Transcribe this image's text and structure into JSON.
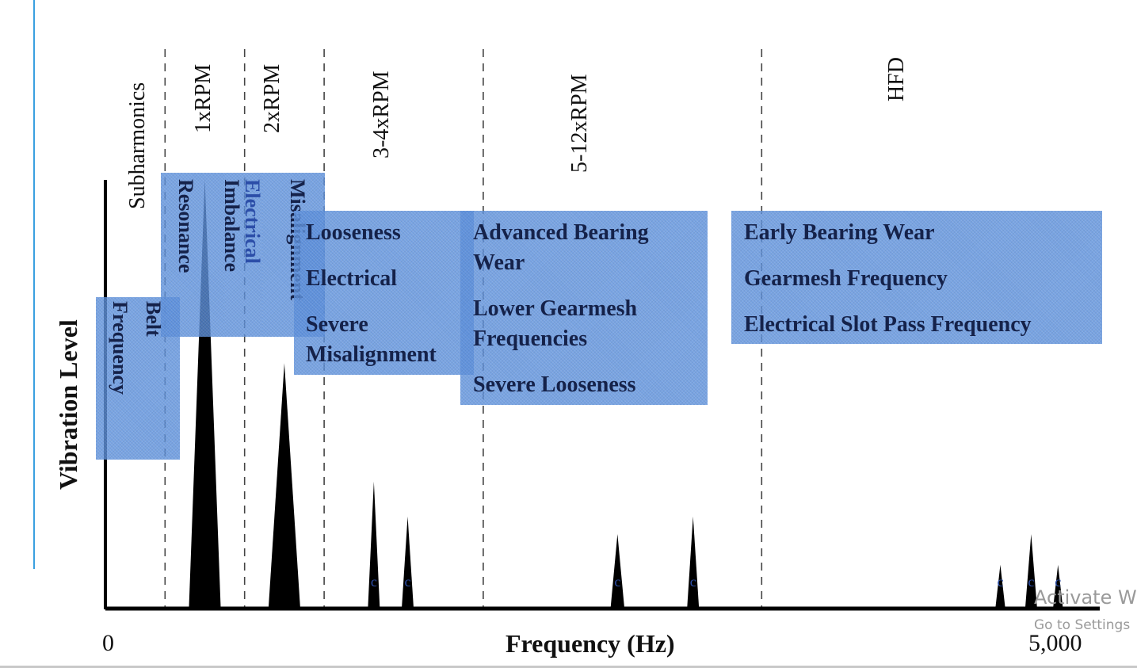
{
  "chart_data": {
    "type": "area",
    "xlabel": "Frequency (Hz)",
    "ylabel": "Vibration Level",
    "xlim": [
      0,
      5000
    ],
    "x_ticks": [
      "0",
      "5,000"
    ],
    "zones": [
      "Subharmonics",
      "1xRPM",
      "2xRPM",
      "3-4xRPM",
      "5-12xRPM",
      "HFD"
    ],
    "zone_edges": [
      300,
      700,
      1100,
      1900,
      3300
    ],
    "peaks": [
      {
        "x": 500,
        "height": 0.98,
        "half_width": 80,
        "label": ""
      },
      {
        "x": 900,
        "height": 0.56,
        "half_width": 80,
        "label": ""
      },
      {
        "x": 1350,
        "height": 0.29,
        "half_width": 30,
        "label": "c"
      },
      {
        "x": 1520,
        "height": 0.21,
        "half_width": 30,
        "label": "c"
      },
      {
        "x": 2575,
        "height": 0.17,
        "half_width": 35,
        "label": "c"
      },
      {
        "x": 2955,
        "height": 0.21,
        "half_width": 30,
        "label": "c"
      },
      {
        "x": 4500,
        "height": 0.1,
        "half_width": 25,
        "label": "c"
      },
      {
        "x": 4655,
        "height": 0.17,
        "half_width": 30,
        "label": "c"
      },
      {
        "x": 4790,
        "height": 0.1,
        "half_width": 25,
        "label": "c"
      }
    ],
    "annotations": {
      "belt_frequency": [
        "Belt",
        "Frequency"
      ],
      "resonance": "Resonance",
      "electrical_imbalance": [
        "Electrical",
        "Imbalance"
      ],
      "misalignment": "Misalignment",
      "group_3_4x": [
        "Looseness",
        "Electrical",
        "Severe",
        "Misalignment"
      ],
      "group_5_12x": [
        "Advanced Bearing",
        "Wear",
        "Lower Gearmesh",
        "Frequencies",
        "Severe Looseness"
      ],
      "group_hfd": [
        "Early Bearing Wear",
        "Gearmesh Frequency",
        "Electrical Slot Pass Frequency"
      ]
    },
    "colors": {
      "annotation_box": "#5b8fdc",
      "annotation_text": "#15224a",
      "peak_fill": "#000000"
    }
  },
  "watermark": {
    "line1": "Activate W",
    "line2": "Go to Settings"
  }
}
